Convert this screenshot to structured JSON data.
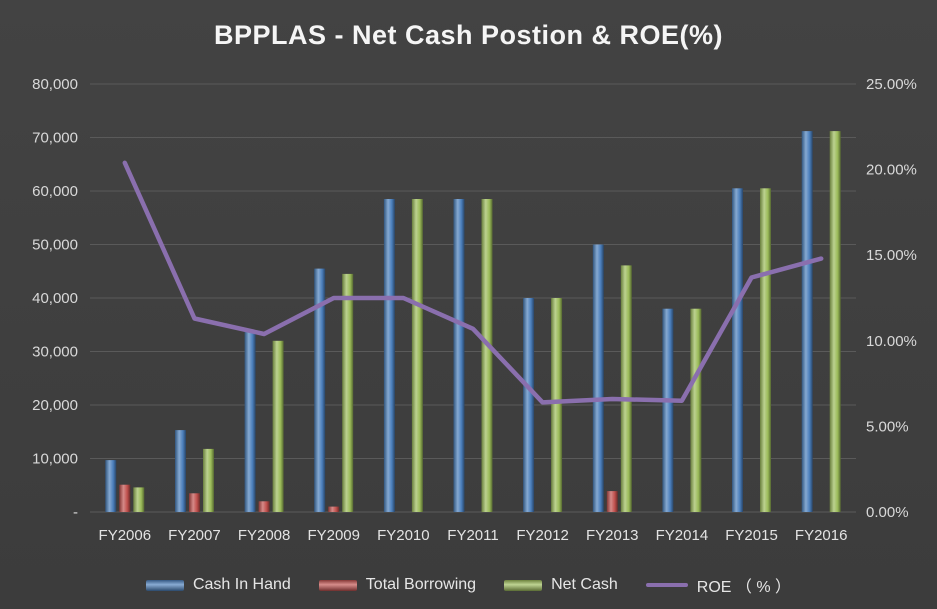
{
  "title": "BPPLAS - Net Cash Postion & ROE(%)",
  "colors": {
    "background": "#3e3e3e",
    "gridline": "#5a5a5a",
    "axis_text": "#d9d9d9",
    "title_text": "#f5f5f5",
    "cash_in_hand": "#4a7ebb",
    "total_borrowing": "#c0504d",
    "net_cash": "#9bbb59",
    "roe_line": "#8a6fae"
  },
  "chart_data": {
    "type": "bar",
    "title": "BPPLAS - Net Cash Postion & ROE(%)",
    "categories": [
      "FY2006",
      "FY2007",
      "FY2008",
      "FY2009",
      "FY2010",
      "FY2011",
      "FY2012",
      "FY2013",
      "FY2014",
      "FY2015",
      "FY2016"
    ],
    "series": [
      {
        "name": "Cash In Hand",
        "type": "bar",
        "axis": "left",
        "color_key": "cash_in_hand",
        "values": [
          9700,
          15300,
          34000,
          45500,
          58500,
          58500,
          40000,
          50000,
          38000,
          60500,
          71200
        ]
      },
      {
        "name": "Total Borrowing",
        "type": "bar",
        "axis": "left",
        "color_key": "total_borrowing",
        "values": [
          5100,
          3500,
          2000,
          1000,
          0,
          0,
          0,
          3900,
          0,
          0,
          0
        ]
      },
      {
        "name": "Net Cash",
        "type": "bar",
        "axis": "left",
        "color_key": "net_cash",
        "values": [
          4600,
          11800,
          32000,
          44500,
          58500,
          58500,
          40000,
          46100,
          38000,
          60500,
          71200
        ]
      },
      {
        "name": "ROE （ % ）",
        "type": "line",
        "axis": "right",
        "color_key": "roe_line",
        "values": [
          20.4,
          11.3,
          10.4,
          12.5,
          12.5,
          10.7,
          6.4,
          6.6,
          6.5,
          13.7,
          14.8
        ]
      }
    ],
    "left_axis": {
      "min": 0,
      "max": 80000,
      "step": 10000,
      "tick_labels": [
        "-",
        "10,000",
        "20,000",
        "30,000",
        "40,000",
        "50,000",
        "60,000",
        "70,000",
        "80,000"
      ]
    },
    "right_axis": {
      "min": 0,
      "max": 25,
      "step": 5,
      "tick_labels": [
        "0.00%",
        "5.00%",
        "10.00%",
        "15.00%",
        "20.00%",
        "25.00%"
      ]
    },
    "grid": true,
    "legend_position": "bottom"
  }
}
